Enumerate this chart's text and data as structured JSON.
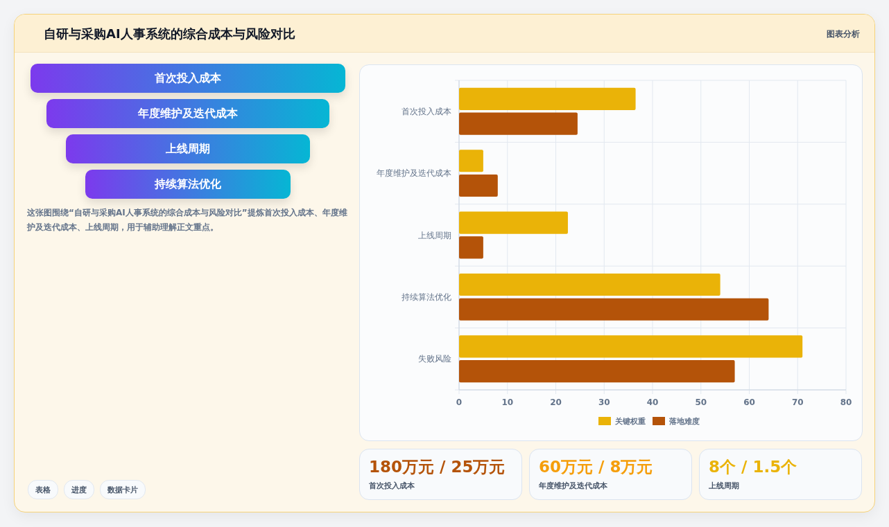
{
  "chart_data": [
    {
      "type": "other",
      "title": "自研与采购AI人事系统的综合成本与风险对比",
      "subtitle": "图表分析",
      "categories": [
        "首次投入成本",
        "年度维护及迭代成本",
        "上线周期",
        "持续算法优化"
      ],
      "annotations": [
        "这张图围绕“自研与采购AI人事系统的综合成本与风险对比”提炼首次投入成本、年度维护及迭代成本、上线周期，用于辅助理解正文重点。",
        "表格",
        "进度",
        "数据卡片"
      ]
    },
    {
      "type": "bar",
      "orientation": "horizontal",
      "categories": [
        "首次投入成本",
        "年度维护及迭代成本",
        "上线周期",
        "持续算法优化",
        "失败风险"
      ],
      "series": [
        {
          "name": "关键权重",
          "color": "#eab308",
          "values": [
            36.5,
            5,
            22.5,
            54,
            71
          ]
        },
        {
          "name": "落地难度",
          "color": "#b45309",
          "values": [
            24.5,
            8,
            5,
            64,
            57
          ]
        }
      ],
      "xlim": [
        0,
        80
      ],
      "xticks": [
        0,
        10,
        20,
        30,
        40,
        50,
        60,
        70,
        80
      ],
      "grid": true,
      "legend": "bottom"
    },
    {
      "type": "other",
      "categories": [
        "180万元 / 25万元",
        "60万元 / 8万元",
        "8个 / 1.5个"
      ],
      "annotations": [
        "首次投入成本",
        "年度维护及迭代成本",
        "上线周期"
      ]
    }
  ]
}
